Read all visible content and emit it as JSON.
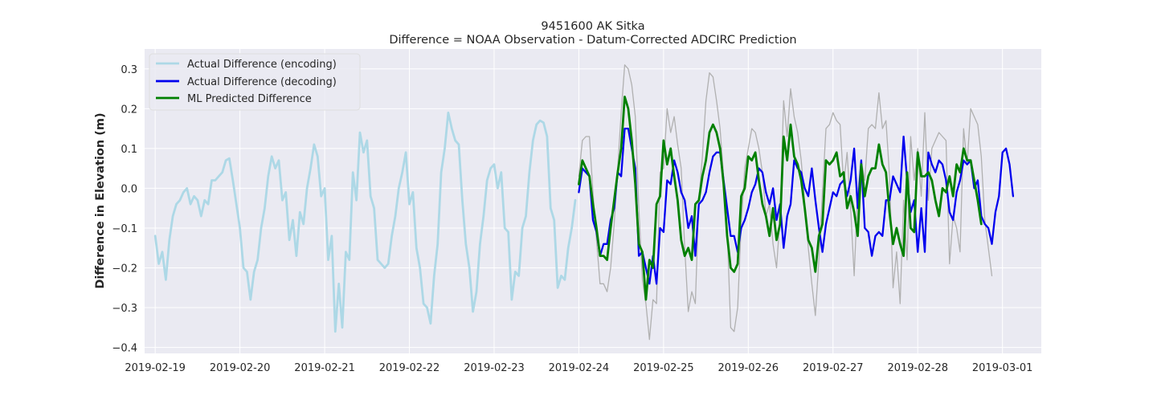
{
  "chart_data": {
    "type": "line",
    "title": "9451600 AK Sitka",
    "subtitle": "Difference = NOAA Observation - Datum-Corrected ADCIRC Prediction",
    "xlabel": "",
    "ylabel": "Difference in Elevation (m)",
    "x_range": [
      "2019-02-18 21:00",
      "2019-03-01 11:00"
    ],
    "ylim": [
      -0.415,
      0.35
    ],
    "x_tick_labels": [
      "2019-02-19",
      "2019-02-20",
      "2019-02-21",
      "2019-02-22",
      "2019-02-23",
      "2019-02-24",
      "2019-02-25",
      "2019-02-26",
      "2019-02-27",
      "2019-02-28",
      "2019-03-01"
    ],
    "y_ticks": [
      0.3,
      0.2,
      0.1,
      0.0,
      -0.1,
      -0.2,
      -0.3,
      -0.4
    ],
    "y_tick_labels": [
      "0.3",
      "0.2",
      "0.1",
      "0.0",
      "−0.1",
      "−0.2",
      "−0.3",
      "−0.4"
    ],
    "grid": true,
    "legend_position": "upper-left",
    "background_color": "#eaeaf2",
    "series": [
      {
        "name": "Actual Difference (encoding)",
        "color": "#add8e6",
        "x_start": "2019-02-19 00:00",
        "x_step_hours": 1,
        "values": [
          -0.12,
          -0.19,
          -0.16,
          -0.23,
          -0.13,
          -0.07,
          -0.04,
          -0.03,
          -0.01,
          0.0,
          -0.04,
          -0.02,
          -0.03,
          -0.07,
          -0.03,
          -0.04,
          0.02,
          0.02,
          0.03,
          0.04,
          0.07,
          0.075,
          0.02,
          -0.04,
          -0.1,
          -0.2,
          -0.21,
          -0.28,
          -0.21,
          -0.18,
          -0.1,
          -0.05,
          0.03,
          0.08,
          0.05,
          0.07,
          -0.03,
          -0.01,
          -0.13,
          -0.08,
          -0.17,
          -0.06,
          -0.09,
          0.0,
          0.05,
          0.11,
          0.08,
          -0.02,
          0.0,
          -0.18,
          -0.12,
          -0.36,
          -0.24,
          -0.35,
          -0.16,
          -0.18,
          0.04,
          -0.03,
          0.14,
          0.09,
          0.12,
          -0.02,
          -0.05,
          -0.18,
          -0.19,
          -0.2,
          -0.19,
          -0.12,
          -0.07,
          0.0,
          0.04,
          0.09,
          -0.04,
          -0.01,
          -0.15,
          -0.2,
          -0.29,
          -0.3,
          -0.34,
          -0.22,
          -0.14,
          0.04,
          0.1,
          0.19,
          0.15,
          0.12,
          0.11,
          -0.03,
          -0.14,
          -0.2,
          -0.31,
          -0.26,
          -0.14,
          -0.07,
          0.02,
          0.05,
          0.06,
          0.0,
          0.04,
          -0.1,
          -0.11,
          -0.28,
          -0.21,
          -0.22,
          -0.1,
          -0.07,
          0.04,
          0.12,
          0.16,
          0.17,
          0.165,
          0.13,
          -0.05,
          -0.08,
          -0.25,
          -0.22,
          -0.23,
          -0.15,
          -0.1,
          -0.03
        ]
      },
      {
        "name": "Actual Difference (decoding)",
        "color": "#0000ee",
        "x_start": "2019-02-24 00:00",
        "x_step_hours": 1,
        "values": [
          -0.01,
          0.05,
          0.04,
          0.03,
          -0.08,
          -0.11,
          -0.17,
          -0.14,
          -0.14,
          -0.08,
          -0.05,
          0.04,
          0.03,
          0.15,
          0.15,
          0.1,
          0.05,
          -0.17,
          -0.16,
          -0.2,
          -0.24,
          -0.17,
          -0.24,
          -0.1,
          -0.11,
          0.02,
          0.01,
          0.07,
          0.04,
          -0.01,
          -0.03,
          -0.1,
          -0.07,
          -0.17,
          -0.04,
          -0.03,
          -0.01,
          0.04,
          0.08,
          0.09,
          0.09,
          0.02,
          -0.05,
          -0.12,
          -0.12,
          -0.16,
          -0.1,
          -0.08,
          -0.05,
          -0.01,
          0.01,
          0.05,
          0.04,
          -0.01,
          -0.04,
          0.0,
          -0.08,
          -0.04,
          -0.15,
          -0.07,
          -0.04,
          0.07,
          0.05,
          0.04,
          0.0,
          -0.02,
          0.05,
          -0.03,
          -0.1,
          -0.16,
          -0.09,
          -0.05,
          -0.01,
          -0.02,
          0.01,
          0.02,
          -0.02,
          0.02,
          0.1,
          -0.05,
          0.07,
          -0.1,
          -0.11,
          -0.17,
          -0.12,
          -0.11,
          -0.12,
          -0.03,
          -0.03,
          0.03,
          0.01,
          -0.01,
          0.13,
          0.02,
          -0.06,
          -0.03,
          -0.16,
          -0.05,
          -0.16,
          0.09,
          0.06,
          0.04,
          0.07,
          0.06,
          0.02,
          -0.06,
          -0.08,
          -0.01,
          0.02,
          0.07,
          0.06,
          0.07,
          0.0,
          0.02,
          -0.07,
          -0.09,
          -0.1,
          -0.14,
          -0.06,
          -0.02,
          0.09,
          0.1,
          0.06,
          -0.02
        ]
      },
      {
        "name": "ML Predicted Difference",
        "color": "#008000",
        "x_start": "2019-02-24 00:00",
        "x_step_hours": 1,
        "values": [
          0.01,
          0.07,
          0.05,
          0.03,
          -0.04,
          -0.1,
          -0.17,
          -0.17,
          -0.18,
          -0.1,
          -0.03,
          0.04,
          0.1,
          0.23,
          0.2,
          0.12,
          0.01,
          -0.14,
          -0.16,
          -0.28,
          -0.18,
          -0.2,
          -0.04,
          -0.02,
          0.12,
          0.06,
          0.1,
          0.03,
          -0.03,
          -0.13,
          -0.17,
          -0.15,
          -0.18,
          -0.04,
          -0.03,
          0.03,
          0.07,
          0.14,
          0.16,
          0.14,
          0.1,
          0.01,
          -0.12,
          -0.2,
          -0.21,
          -0.19,
          -0.02,
          0.0,
          0.08,
          0.07,
          0.09,
          0.02,
          -0.04,
          -0.07,
          -0.12,
          -0.05,
          -0.13,
          -0.09,
          0.13,
          0.07,
          0.16,
          0.08,
          0.06,
          0.02,
          -0.05,
          -0.13,
          -0.15,
          -0.21,
          -0.12,
          -0.09,
          0.07,
          0.06,
          0.07,
          0.09,
          0.03,
          0.04,
          -0.05,
          -0.02,
          -0.06,
          -0.12,
          0.06,
          -0.02,
          0.03,
          0.05,
          0.05,
          0.11,
          0.06,
          0.04,
          -0.06,
          -0.14,
          -0.1,
          -0.14,
          -0.17,
          0.04,
          -0.1,
          -0.11,
          0.09,
          0.03,
          0.03,
          0.04,
          0.02,
          -0.03,
          -0.07,
          0.0,
          -0.01,
          0.03,
          -0.02,
          0.06,
          0.04,
          0.1,
          0.07,
          0.07,
          0.02,
          -0.03,
          -0.09
        ]
      },
      {
        "name": "",
        "color": "#b0b0b0",
        "x_start": "2019-02-24 00:00",
        "x_step_hours": 1,
        "values": [
          0.03,
          0.12,
          0.13,
          0.13,
          -0.01,
          -0.13,
          -0.24,
          -0.24,
          -0.26,
          -0.2,
          -0.09,
          0.05,
          0.19,
          0.31,
          0.3,
          0.26,
          0.18,
          -0.05,
          -0.23,
          -0.29,
          -0.38,
          -0.28,
          -0.29,
          0.04,
          0.05,
          0.2,
          0.14,
          0.18,
          0.11,
          0.05,
          -0.15,
          -0.31,
          -0.26,
          -0.29,
          -0.03,
          0.08,
          0.22,
          0.29,
          0.28,
          0.22,
          0.15,
          0.03,
          -0.1,
          -0.35,
          -0.36,
          -0.3,
          -0.09,
          0.05,
          0.1,
          0.15,
          0.14,
          0.1,
          0.04,
          -0.07,
          -0.04,
          -0.14,
          -0.2,
          -0.07,
          0.22,
          0.13,
          0.25,
          0.18,
          0.14,
          0.07,
          -0.04,
          -0.15,
          -0.24,
          -0.32,
          -0.18,
          -0.01,
          0.15,
          0.16,
          0.19,
          0.17,
          0.16,
          0.01,
          0.09,
          -0.05,
          -0.22,
          -0.01,
          0.07,
          0.02,
          0.15,
          0.16,
          0.15,
          0.24,
          0.15,
          0.17,
          0.03,
          -0.25,
          -0.16,
          -0.29,
          -0.03,
          -0.18,
          0.13,
          0.02,
          0.1,
          -0.02,
          0.19,
          -0.03,
          0.1,
          0.12,
          0.14,
          0.13,
          0.12,
          -0.19,
          -0.07,
          -0.1,
          -0.16,
          0.15,
          0.06,
          0.2,
          0.18,
          0.16,
          0.08,
          -0.08,
          -0.15,
          -0.22
        ]
      }
    ]
  }
}
